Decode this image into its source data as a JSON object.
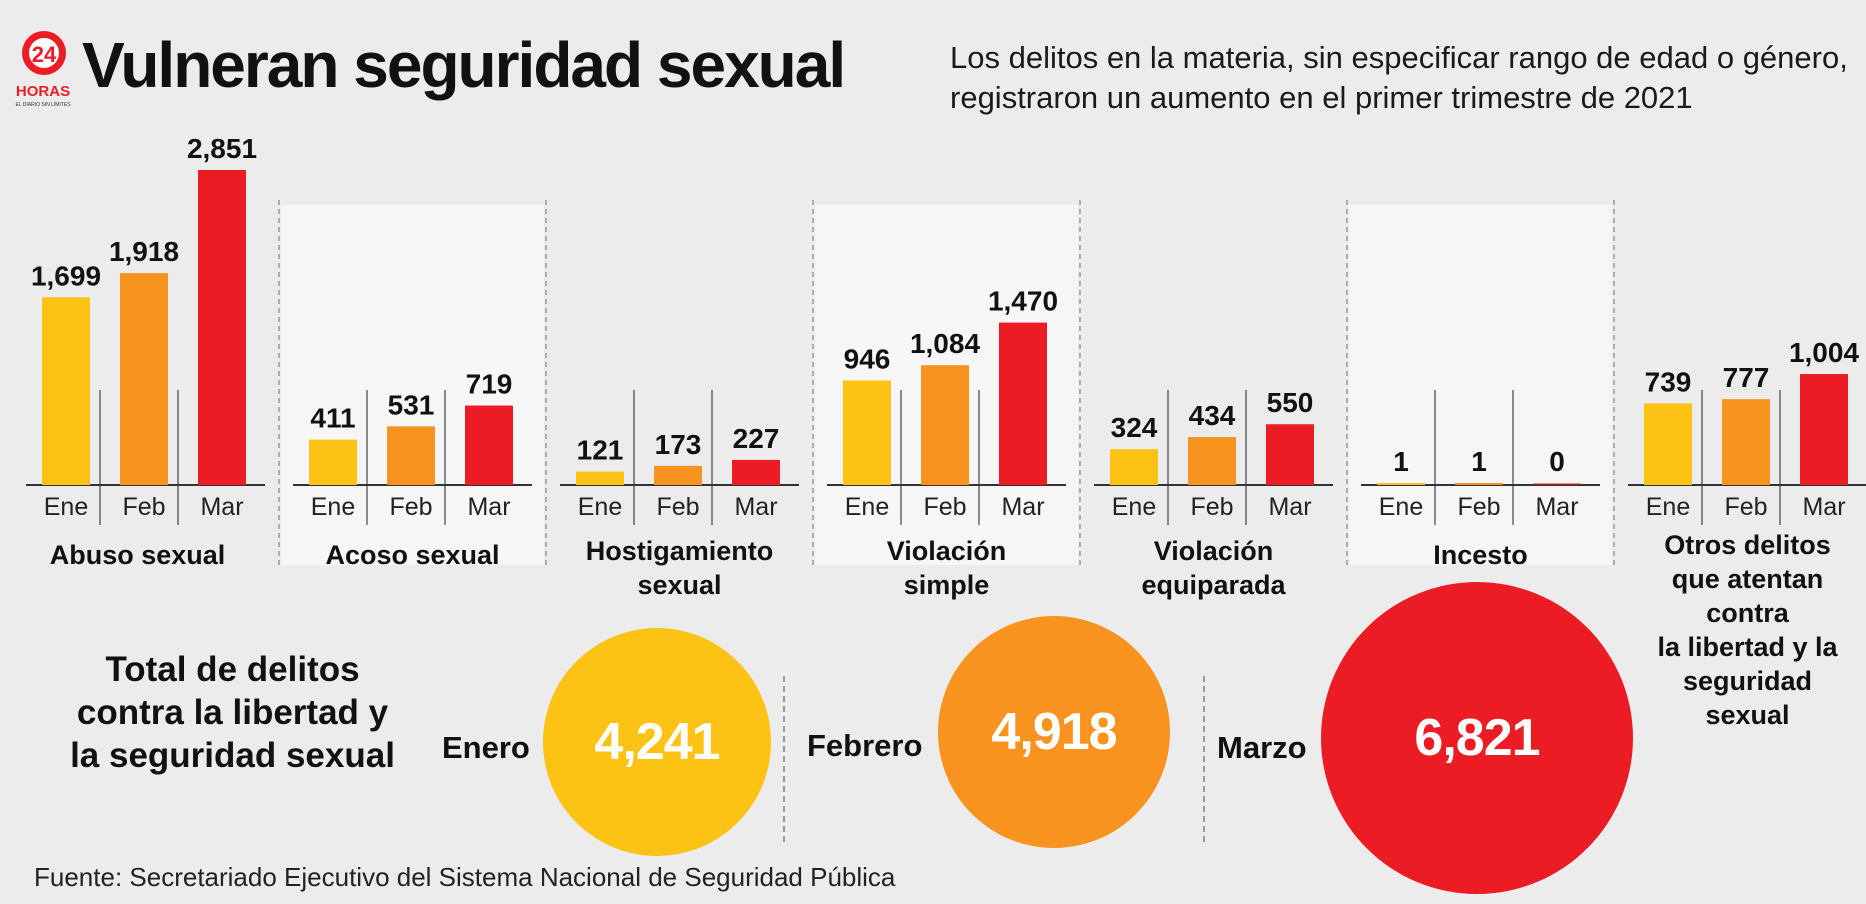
{
  "logo": {
    "number": "24",
    "brand": "HORAS",
    "tagline": "EL DIARIO SIN LÍMITES"
  },
  "header": {
    "title": "Vulneran seguridad sexual",
    "subtitle_line1": "Los delitos en la materia, sin especificar rango de edad o género,",
    "subtitle_line2": "registraron un aumento en el primer trimestre de 2021"
  },
  "colors": {
    "ene": "#fcc314",
    "feb": "#f7931e",
    "mar": "#ec1c24",
    "background": "#ececec",
    "panel": "#f6f6f6"
  },
  "chart_data": {
    "type": "bar",
    "categories": [
      "Ene",
      "Feb",
      "Mar"
    ],
    "groups": [
      {
        "name": [
          "Abuso sexual"
        ],
        "values": [
          1699,
          1918,
          2851
        ]
      },
      {
        "name": [
          "Acoso sexual"
        ],
        "values": [
          411,
          531,
          719
        ]
      },
      {
        "name": [
          "Hostigamiento",
          "sexual"
        ],
        "values": [
          121,
          173,
          227
        ]
      },
      {
        "name": [
          "Violación",
          "simple"
        ],
        "values": [
          946,
          1084,
          1470
        ]
      },
      {
        "name": [
          "Violación",
          "equiparada"
        ],
        "values": [
          324,
          434,
          550
        ]
      },
      {
        "name": [
          "Incesto"
        ],
        "values": [
          1,
          1,
          0
        ]
      },
      {
        "name": [
          "Otros delitos",
          "que atentan",
          "contra",
          "la libertad y la",
          "seguridad",
          "sexual"
        ],
        "values": [
          739,
          777,
          1004
        ]
      }
    ]
  },
  "totals": {
    "heading_line1": "Total de delitos",
    "heading_line2": "contra la libertad y",
    "heading_line3": "la seguridad sexual",
    "items": [
      {
        "month": "Enero",
        "value": "4,241"
      },
      {
        "month": "Febrero",
        "value": "4,918"
      },
      {
        "month": "Marzo",
        "value": "6,821"
      }
    ]
  },
  "source": "Fuente: Secretariado Ejecutivo del Sistema Nacional de Seguridad Pública"
}
